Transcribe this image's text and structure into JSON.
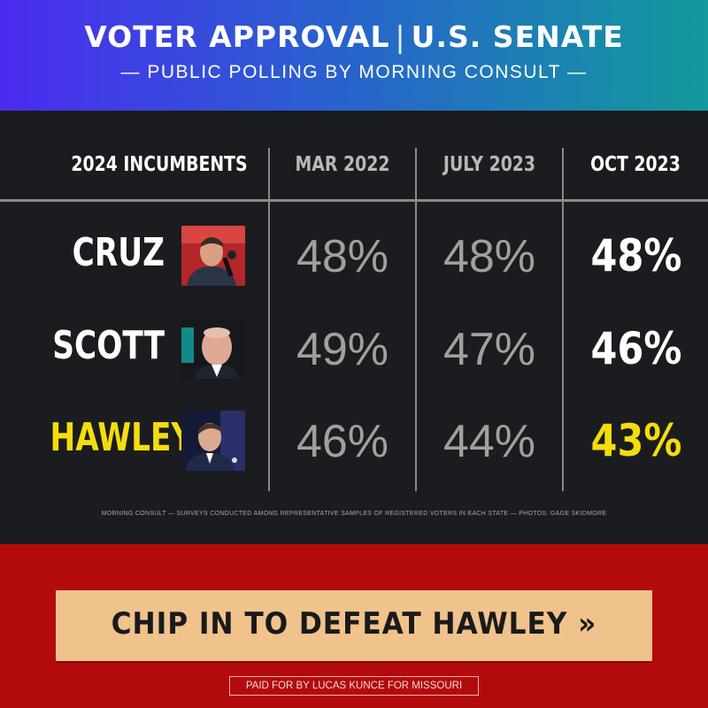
{
  "header": {
    "title_left": "VOTER APPROVAL",
    "title_sep": "|",
    "title_right": "U.S. SENATE",
    "subtitle": "— PUBLIC POLLING BY MORNING CONSULT —"
  },
  "table": {
    "columns": [
      "2024 INCUMBENTS",
      "MAR 2022",
      "JULY 2023",
      "OCT 2023"
    ],
    "rows": [
      {
        "name": "CRUZ",
        "photo": "cruz-photo",
        "values": [
          "48%",
          "48%",
          "48%"
        ]
      },
      {
        "name": "SCOTT",
        "photo": "scott-photo",
        "values": [
          "49%",
          "47%",
          "46%"
        ]
      },
      {
        "name": "HAWLEY",
        "photo": "hawley-photo",
        "values": [
          "46%",
          "44%",
          "43%"
        ]
      }
    ],
    "footnote": "MORNING CONSULT — SURVEYS CONDUCTED AMONG REPRESENTATIVE SAMPLES OF REGISTERED VOTERS IN EACH STATE — PHOTOS: GAGE SKIDMORE"
  },
  "cta": {
    "label": "CHIP IN TO DEFEAT HAWLEY »"
  },
  "paid_for": "PAID FOR BY LUCAS KUNCE FOR MISSOURI",
  "colors": {
    "highlight": "#f4dd0c",
    "background": "#1b1c20",
    "red": "#b30b0b",
    "cta": "#f0c38d"
  }
}
